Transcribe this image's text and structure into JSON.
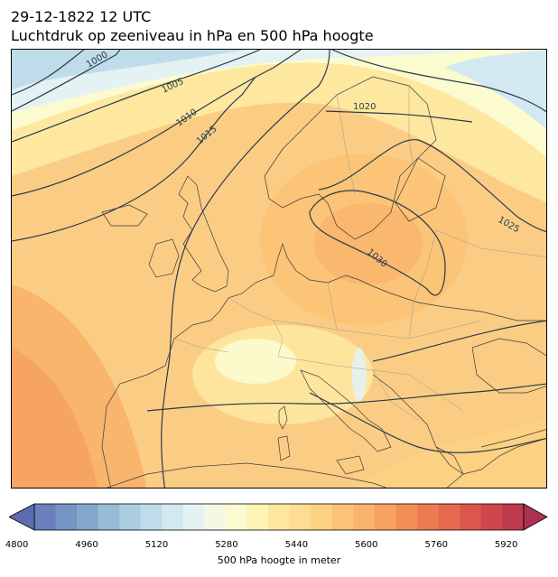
{
  "title": {
    "line1": "29-12-1822 12 UTC",
    "line2": "Luchtdruk op zeeniveau in hPa en 500 hPa hoogte"
  },
  "colorbar": {
    "label": "500 hPa hoogte in meter",
    "min": 4800,
    "max": 6000,
    "step": 40,
    "ticks": [
      "4800",
      "4960",
      "5120",
      "5280",
      "5440",
      "5600",
      "5760",
      "5920"
    ],
    "colors": [
      "#5e6bb3",
      "#6a7fbb",
      "#7593c3",
      "#84a8cb",
      "#96bcd6",
      "#aacde0",
      "#bfdcea",
      "#d3e9f1",
      "#e4f2f3",
      "#f2f8e4",
      "#fcfbd0",
      "#fff3b5",
      "#fee8a0",
      "#fddd90",
      "#fcd182",
      "#fbc376",
      "#f9b36a",
      "#f7a160",
      "#f38d58",
      "#ee7a52",
      "#e6684e",
      "#dc564c",
      "#cf464c",
      "#be3a4e",
      "#aa3150"
    ]
  },
  "map": {
    "isobar_labels": [
      "1000",
      "1005",
      "1010",
      "1015",
      "1020",
      "1025",
      "1030"
    ],
    "colors": {
      "isobar": "#2b3a4a",
      "coast": "#3b3b3b",
      "border": "#9a9a9a"
    }
  }
}
